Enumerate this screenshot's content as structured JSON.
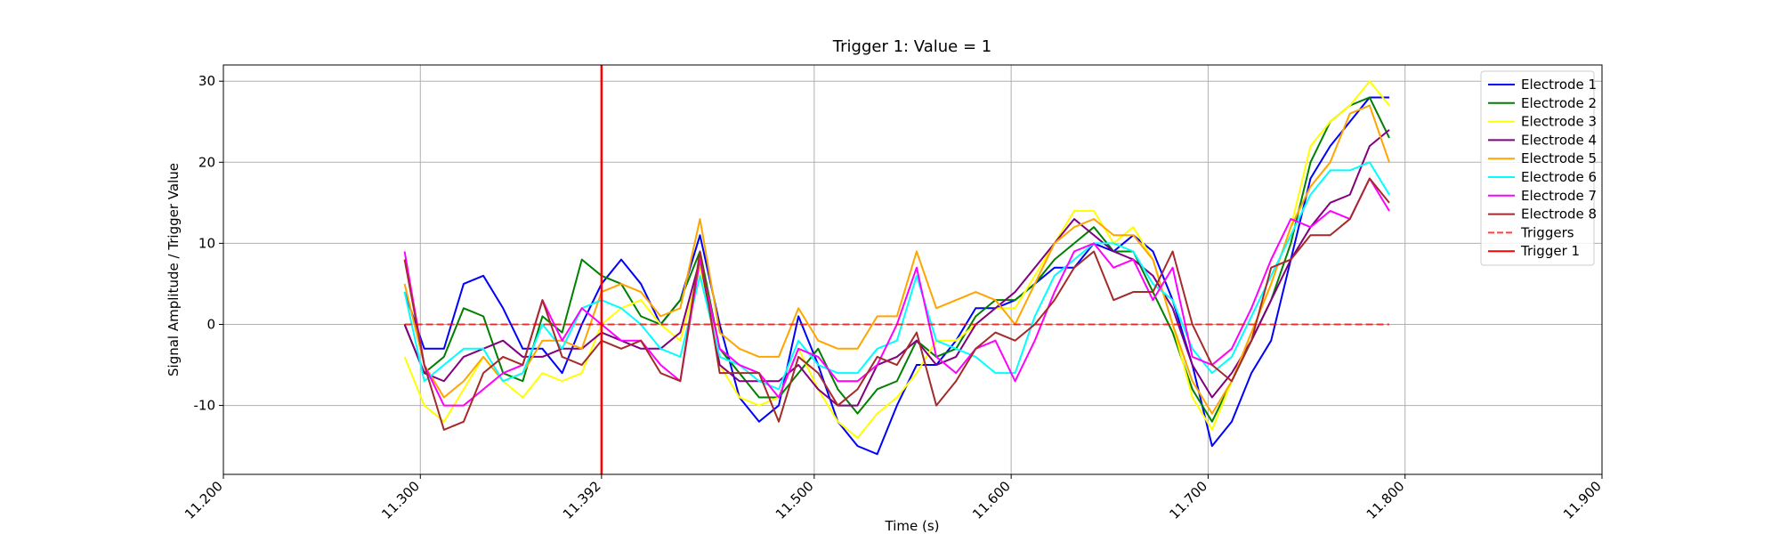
{
  "chart_data": {
    "type": "line",
    "title": "Trigger 1: Value = 1",
    "xlabel": "Time (s)",
    "ylabel": "Signal Amplitude / Trigger Value",
    "xlim": [
      11.2,
      11.9
    ],
    "ylim": [
      -18.5,
      32
    ],
    "xticks": [
      {
        "value": 11.2,
        "label": "11.200"
      },
      {
        "value": 11.3,
        "label": "11.300"
      },
      {
        "value": 11.392,
        "label": "11.392"
      },
      {
        "value": 11.5,
        "label": "11.500"
      },
      {
        "value": 11.6,
        "label": "11.600"
      },
      {
        "value": 11.7,
        "label": "11.700"
      },
      {
        "value": 11.8,
        "label": "11.800"
      },
      {
        "value": 11.9,
        "label": "11.900"
      }
    ],
    "yticks": [
      -10,
      0,
      10,
      20,
      30
    ],
    "grid": true,
    "legend": "upper right",
    "x": [
      11.292,
      11.302,
      11.312,
      11.322,
      11.332,
      11.342,
      11.352,
      11.362,
      11.372,
      11.382,
      11.392,
      11.402,
      11.412,
      11.422,
      11.432,
      11.442,
      11.452,
      11.462,
      11.472,
      11.482,
      11.492,
      11.502,
      11.512,
      11.522,
      11.532,
      11.542,
      11.552,
      11.562,
      11.572,
      11.582,
      11.592,
      11.602,
      11.612,
      11.622,
      11.632,
      11.642,
      11.652,
      11.662,
      11.672,
      11.682,
      11.692,
      11.702,
      11.712,
      11.722,
      11.732,
      11.742,
      11.752,
      11.762,
      11.772,
      11.782,
      11.792
    ],
    "series": [
      {
        "name": "Electrode 1",
        "color": "#0000ff",
        "values": [
          4,
          -3,
          -3,
          5,
          6,
          2,
          -3,
          -3,
          -6,
          0,
          5,
          8,
          5,
          0,
          3,
          11,
          0,
          -9,
          -12,
          -10,
          1,
          -5,
          -12,
          -15,
          -16,
          -10,
          -5,
          -5,
          -2,
          2,
          2,
          3,
          5,
          7,
          7,
          10,
          9,
          11,
          9,
          3,
          -5,
          -15,
          -12,
          -6,
          -2,
          8,
          18,
          22,
          25,
          28,
          28
        ]
      },
      {
        "name": "Electrode 2",
        "color": "#008000",
        "values": [
          0,
          -6,
          -4,
          2,
          1,
          -6,
          -7,
          1,
          -1,
          8,
          6,
          5,
          1,
          0,
          3,
          9,
          -3,
          -6,
          -9,
          -9,
          -6,
          -3,
          -8,
          -11,
          -8,
          -7,
          -2,
          -4,
          -3,
          1,
          3,
          3,
          5,
          8,
          10,
          12,
          9,
          9,
          4,
          -1,
          -8,
          -12,
          -7,
          -2,
          3,
          10,
          20,
          25,
          27,
          28,
          23
        ]
      },
      {
        "name": "Electrode 3",
        "color": "#ffff00",
        "values": [
          -4,
          -10,
          -12,
          -8,
          -4,
          -7,
          -9,
          -6,
          -7,
          -6,
          0,
          2,
          3,
          0,
          -2,
          7,
          -5,
          -9,
          -10,
          -9,
          -3,
          -8,
          -12,
          -14,
          -11,
          -9,
          -6,
          -2,
          -2,
          0,
          2,
          2,
          6,
          10,
          14,
          14,
          10,
          12,
          8,
          0,
          -9,
          -13,
          -7,
          -1,
          5,
          12,
          22,
          25,
          27,
          30,
          27
        ]
      },
      {
        "name": "Electrode 4",
        "color": "#800080",
        "values": [
          0,
          -6,
          -7,
          -4,
          -3,
          -2,
          -4,
          -4,
          -3,
          -3,
          -1,
          -2,
          -3,
          -3,
          -1,
          8,
          -5,
          -7,
          -7,
          -7,
          -5,
          -8,
          -10,
          -10,
          -5,
          -4,
          -2,
          -5,
          -4,
          0,
          2,
          4,
          7,
          10,
          13,
          11,
          9,
          8,
          6,
          2,
          -5,
          -9,
          -6,
          -2,
          3,
          8,
          12,
          15,
          16,
          22,
          24
        ]
      },
      {
        "name": "Electrode 5",
        "color": "#ffa500",
        "values": [
          5,
          -5,
          -9,
          -7,
          -4,
          -7,
          -6,
          -2,
          -2,
          -3,
          4,
          5,
          4,
          1,
          2,
          13,
          -1,
          -3,
          -4,
          -4,
          2,
          -2,
          -3,
          -3,
          1,
          1,
          9,
          2,
          3,
          4,
          3,
          0,
          5,
          10,
          12,
          13,
          11,
          11,
          8,
          0,
          -7,
          -11,
          -7,
          -1,
          5,
          12,
          17,
          20,
          26,
          27,
          20
        ]
      },
      {
        "name": "Electrode 6",
        "color": "#00ffff",
        "values": [
          4,
          -7,
          -5,
          -3,
          -3,
          -7,
          -6,
          0,
          -3,
          2,
          3,
          2,
          0,
          -3,
          -4,
          6,
          -4,
          -5,
          -7,
          -8,
          -2,
          -5,
          -6,
          -6,
          -3,
          -2,
          6,
          -2,
          -3,
          -4,
          -6,
          -6,
          1,
          6,
          8,
          10,
          10,
          9,
          5,
          3,
          -3,
          -6,
          -4,
          1,
          6,
          11,
          16,
          19,
          19,
          20,
          16
        ]
      },
      {
        "name": "Electrode 7",
        "color": "#ff00ff",
        "values": [
          9,
          -5,
          -10,
          -10,
          -8,
          -6,
          -5,
          3,
          -2,
          2,
          0,
          -2,
          -2,
          -5,
          -7,
          8,
          -3,
          -5,
          -6,
          -9,
          -3,
          -4,
          -7,
          -7,
          -5,
          0,
          7,
          -4,
          -6,
          -3,
          -2,
          -7,
          -2,
          4,
          9,
          10,
          7,
          8,
          3,
          7,
          -4,
          -5,
          -3,
          2,
          8,
          13,
          12,
          14,
          13,
          18,
          14
        ]
      },
      {
        "name": "Electrode 8",
        "color": "#a52a2a",
        "values": [
          8,
          -5,
          -13,
          -12,
          -6,
          -4,
          -5,
          3,
          -4,
          -5,
          -2,
          -3,
          -2,
          -6,
          -7,
          9,
          -6,
          -6,
          -6,
          -12,
          -4,
          -6,
          -10,
          -8,
          -4,
          -5,
          -1,
          -10,
          -7,
          -3,
          -1,
          -2,
          0,
          3,
          7,
          9,
          3,
          4,
          4,
          9,
          0,
          -5,
          -7,
          -2,
          7,
          8,
          11,
          11,
          13,
          18,
          15
        ]
      },
      {
        "name": "Triggers",
        "color": "#ff0000",
        "dashed": true,
        "x": [
          11.292,
          11.792
        ],
        "values": [
          0,
          0
        ]
      },
      {
        "name": "Trigger 1",
        "color": "#ff0000",
        "vertical_at": 11.392
      }
    ]
  }
}
